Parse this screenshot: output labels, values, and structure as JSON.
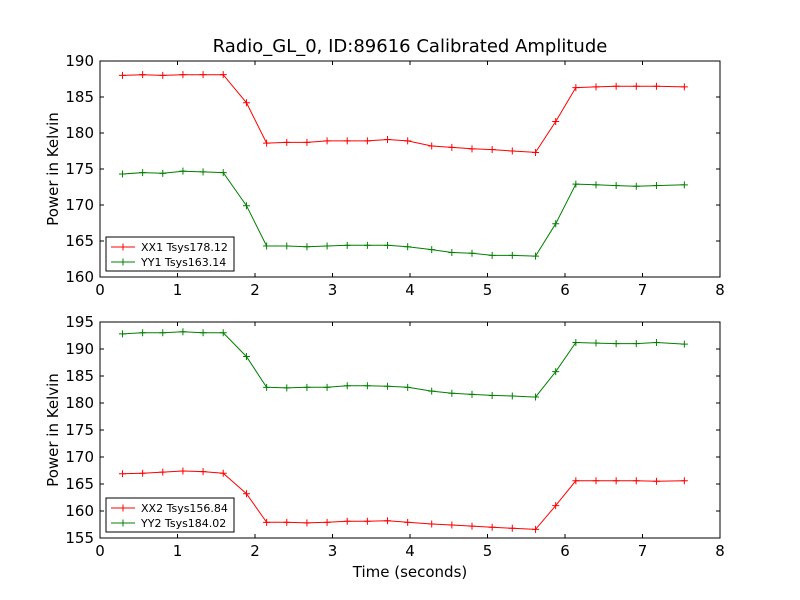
{
  "title": "Radio_GL_0, ID:89616 Calibrated Amplitude",
  "chart_data": [
    {
      "type": "line",
      "ylabel": "Power in Kelvin",
      "xlabel": "",
      "xlim": [
        0,
        8
      ],
      "ylim": [
        160,
        190
      ],
      "xticks": [
        "0",
        "1",
        "2",
        "3",
        "4",
        "5",
        "6",
        "7",
        "8"
      ],
      "yticks": [
        "160",
        "165",
        "170",
        "175",
        "180",
        "185",
        "190"
      ],
      "legend_position": "lower-left",
      "x": [
        0.29,
        0.55,
        0.81,
        1.07,
        1.33,
        1.59,
        1.89,
        2.15,
        2.41,
        2.67,
        2.93,
        3.19,
        3.45,
        3.71,
        3.97,
        4.28,
        4.54,
        4.8,
        5.06,
        5.32,
        5.62,
        5.88,
        6.14,
        6.4,
        6.66,
        6.92,
        7.18,
        7.54
      ],
      "series": [
        {
          "name": "XX1 Tsys178.12",
          "color": "#ff0000",
          "values": [
            188.0,
            188.1,
            188.0,
            188.1,
            188.1,
            188.1,
            184.2,
            178.6,
            178.7,
            178.7,
            178.9,
            178.9,
            178.9,
            179.1,
            178.9,
            178.2,
            178.0,
            177.8,
            177.7,
            177.5,
            177.3,
            181.6,
            186.3,
            186.4,
            186.5,
            186.5,
            186.5,
            186.4
          ]
        },
        {
          "name": "YY1 Tsys163.14",
          "color": "#008000",
          "values": [
            174.3,
            174.5,
            174.4,
            174.7,
            174.6,
            174.5,
            169.9,
            164.3,
            164.3,
            164.2,
            164.3,
            164.4,
            164.4,
            164.4,
            164.2,
            163.8,
            163.4,
            163.3,
            163.0,
            163.0,
            162.9,
            167.4,
            172.9,
            172.8,
            172.7,
            172.6,
            172.7,
            172.8
          ]
        }
      ]
    },
    {
      "type": "line",
      "ylabel": "Power in Kelvin",
      "xlabel": "Time (seconds)",
      "xlim": [
        0,
        8
      ],
      "ylim": [
        155,
        195
      ],
      "xticks": [
        "0",
        "1",
        "2",
        "3",
        "4",
        "5",
        "6",
        "7",
        "8"
      ],
      "yticks": [
        "155",
        "160",
        "165",
        "170",
        "175",
        "180",
        "185",
        "190",
        "195"
      ],
      "legend_position": "lower-left",
      "x": [
        0.29,
        0.55,
        0.81,
        1.07,
        1.33,
        1.59,
        1.89,
        2.15,
        2.41,
        2.67,
        2.93,
        3.19,
        3.45,
        3.71,
        3.97,
        4.28,
        4.54,
        4.8,
        5.06,
        5.32,
        5.62,
        5.88,
        6.14,
        6.4,
        6.66,
        6.92,
        7.18,
        7.54
      ],
      "series": [
        {
          "name": "XX2 Tsys156.84",
          "color": "#ff0000",
          "values": [
            166.9,
            167.0,
            167.2,
            167.4,
            167.3,
            167.0,
            163.2,
            157.9,
            157.9,
            157.8,
            157.9,
            158.1,
            158.1,
            158.2,
            157.9,
            157.6,
            157.4,
            157.2,
            157.0,
            156.8,
            156.6,
            161.0,
            165.6,
            165.6,
            165.6,
            165.6,
            165.5,
            165.6
          ]
        },
        {
          "name": "YY2 Tsys184.02",
          "color": "#008000",
          "values": [
            192.8,
            193.0,
            193.0,
            193.2,
            193.0,
            193.0,
            188.6,
            182.9,
            182.8,
            182.9,
            182.9,
            183.2,
            183.2,
            183.1,
            182.9,
            182.2,
            181.8,
            181.6,
            181.4,
            181.3,
            181.1,
            185.8,
            191.2,
            191.1,
            191.0,
            191.0,
            191.2,
            190.9
          ]
        }
      ]
    }
  ]
}
